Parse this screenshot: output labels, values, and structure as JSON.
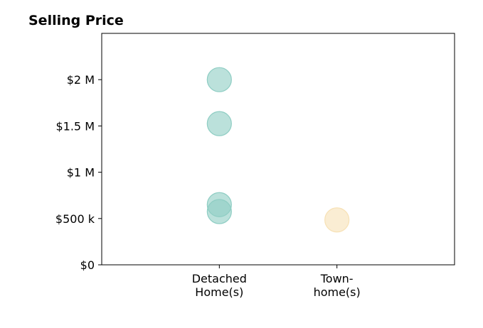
{
  "chart_data": {
    "type": "scatter",
    "title": "Selling Price",
    "xlabel": "",
    "ylabel": "",
    "categories": [
      [
        "Detached",
        "Home(s)"
      ],
      [
        "Town-",
        "home(s)"
      ]
    ],
    "ylim": [
      0,
      2500000
    ],
    "xlim": [
      0,
      3
    ],
    "yticks": [
      {
        "value": 0,
        "label": "$0"
      },
      {
        "value": 500000,
        "label": "$500 k"
      },
      {
        "value": 1000000,
        "label": "$1 M"
      },
      {
        "value": 1500000,
        "label": "$1.5 M"
      },
      {
        "value": 2000000,
        "label": "$2 M"
      }
    ],
    "grid": false,
    "series": [
      {
        "category": 0,
        "color": "#8ecdc3",
        "values": [
          2000000,
          1525000,
          650000,
          575000
        ]
      },
      {
        "category": 1,
        "color": "#f7e1b5",
        "values": [
          485000
        ]
      }
    ]
  }
}
